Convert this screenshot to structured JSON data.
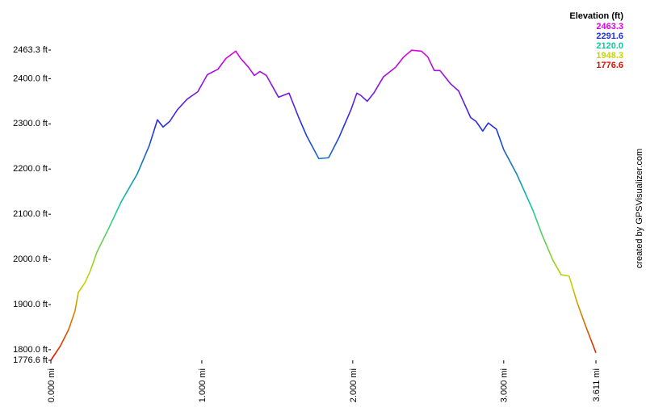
{
  "chart_data": {
    "type": "line",
    "x": [
      0,
      0.064,
      0.118,
      0.16,
      0.182,
      0.225,
      0.262,
      0.305,
      0.385,
      0.465,
      0.572,
      0.652,
      0.706,
      0.743,
      0.786,
      0.84,
      0.904,
      0.973,
      1.037,
      1.107,
      1.16,
      1.225,
      1.257,
      1.31,
      1.348,
      1.385,
      1.428,
      1.508,
      1.578,
      1.642,
      1.695,
      1.775,
      1.84,
      1.909,
      1.989,
      2.027,
      2.053,
      2.096,
      2.139,
      2.203,
      2.283,
      2.337,
      2.39,
      2.455,
      2.497,
      2.54,
      2.578,
      2.647,
      2.701,
      2.781,
      2.818,
      2.861,
      2.898,
      2.952,
      3.0,
      3.086,
      3.193,
      3.257,
      3.326,
      3.38,
      3.433,
      3.487,
      3.54,
      3.611
    ],
    "series": [
      {
        "values": [
          1776.6,
          1809,
          1845,
          1886,
          1927,
          1948,
          1975,
          2016,
          2070,
          2127,
          2189,
          2252,
          2309,
          2293,
          2305,
          2332,
          2355,
          2371,
          2409,
          2421,
          2445,
          2461,
          2445,
          2425,
          2407,
          2416,
          2407,
          2359,
          2368,
          2314,
          2273,
          2223,
          2225,
          2270,
          2332,
          2368,
          2363,
          2350,
          2368,
          2404,
          2425,
          2448,
          2463,
          2461,
          2448,
          2418,
          2418,
          2389,
          2373,
          2314,
          2305,
          2284,
          2302,
          2288,
          2243,
          2189,
          2109,
          2052,
          1998,
          1966,
          1963,
          1904,
          1855,
          1793
        ]
      }
    ],
    "xlim": [
      0,
      3.611
    ],
    "xticks": [
      {
        "value": 0,
        "label": "0.000 mi"
      },
      {
        "value": 1,
        "label": "1.000 mi"
      },
      {
        "value": 2,
        "label": "2.000 mi"
      },
      {
        "value": 3,
        "label": "3.000 mi"
      },
      {
        "value": 3.611,
        "label": "3.611 mi"
      }
    ],
    "ylim": [
      1776.6,
      2463.3
    ],
    "yticks": [
      {
        "value": 1776.6,
        "label": "1776.6 ft"
      },
      {
        "value": 1800,
        "label": "1800.0 ft"
      },
      {
        "value": 1900,
        "label": "1900.0 ft"
      },
      {
        "value": 2000,
        "label": "2000.0 ft"
      },
      {
        "value": 2100,
        "label": "2100.0 ft"
      },
      {
        "value": 2200,
        "label": "2200.0 ft"
      },
      {
        "value": 2300,
        "label": "2300.0 ft"
      },
      {
        "value": 2400,
        "label": "2400.0 ft"
      },
      {
        "value": 2463.3,
        "label": "2463.3 ft"
      }
    ],
    "color_scale_title": "Elevation (ft)",
    "color_scale": [
      {
        "value": 2463.3,
        "label": "2463.3",
        "color": "#e000e0"
      },
      {
        "value": 2291.6,
        "label": "2291.6",
        "color": "#2030e0"
      },
      {
        "value": 2120.0,
        "label": "2120.0",
        "color": "#10c8a0"
      },
      {
        "value": 1948.3,
        "label": "1948.3",
        "color": "#c8d400"
      },
      {
        "value": 1776.6,
        "label": "1776.6",
        "color": "#e01000"
      }
    ],
    "credit": "created by GPSVisualizer.com"
  }
}
